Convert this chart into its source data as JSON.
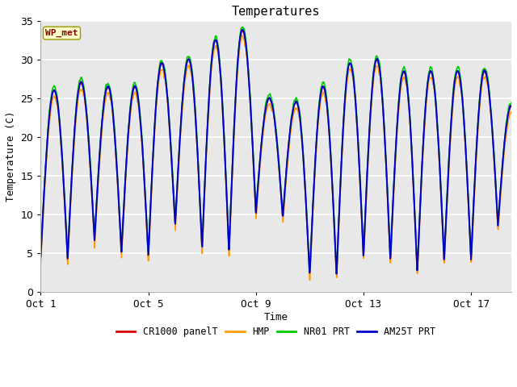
{
  "title": "Temperatures",
  "xlabel": "Time",
  "ylabel": "Temperature (C)",
  "ylim": [
    0,
    35
  ],
  "x_ticks_labels": [
    "Oct 1",
    "Oct 5",
    "Oct 9",
    "Oct 13",
    "Oct 17"
  ],
  "x_ticks_positions": [
    0,
    4,
    8,
    12,
    16
  ],
  "fig_bg_color": "#ffffff",
  "plot_bg_color": "#e8e8e8",
  "grid_color": "#ffffff",
  "annotation_text": "WP_met",
  "annotation_bg": "#ffffcc",
  "annotation_border": "#999900",
  "annotation_text_color": "#880000",
  "series_colors": [
    "#dd0000",
    "#ff9900",
    "#00cc00",
    "#0000cc"
  ],
  "series_labels": [
    "CR1000 panelT",
    "HMP",
    "NR01 PRT",
    "AM25T PRT"
  ],
  "series_linewidths": [
    1.2,
    1.2,
    1.2,
    1.4
  ],
  "figsize": [
    6.4,
    4.8
  ],
  "dpi": 100
}
